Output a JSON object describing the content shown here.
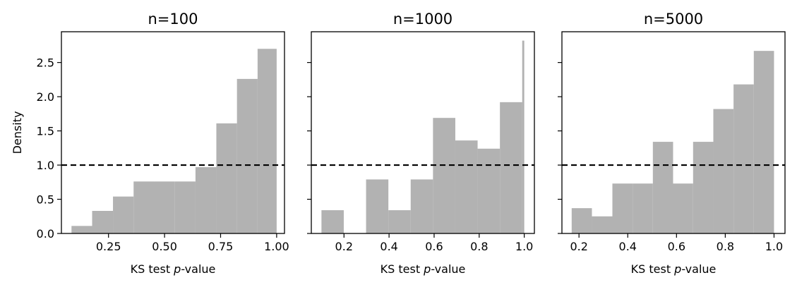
{
  "chart_data": [
    {
      "type": "histogram",
      "title": "n=100",
      "xlabel_prefix": "KS test ",
      "xlabel_var": "p",
      "xlabel_suffix": "-value",
      "ylabel": "Density",
      "xlim": [
        0.04,
        1.035
      ],
      "ylim": [
        0,
        2.95
      ],
      "xticks": [
        0.25,
        0.5,
        0.75,
        1.0
      ],
      "xtick_labels": [
        "0.25",
        "0.50",
        "0.75",
        "1.00"
      ],
      "yticks": [
        0.0,
        0.5,
        1.0,
        1.5,
        2.0,
        2.5
      ],
      "ytick_labels": [
        "0.0",
        "0.5",
        "1.0",
        "1.5",
        "2.0",
        "2.5"
      ],
      "bin_edges": [
        0.085,
        0.177,
        0.27,
        0.362,
        0.454,
        0.546,
        0.638,
        0.731,
        0.823,
        0.915,
        1.0
      ],
      "density": [
        0.11,
        0.33,
        0.54,
        0.76,
        0.76,
        0.76,
        0.97,
        1.61,
        2.26,
        2.7
      ],
      "reference_line": 1.0,
      "bar_color": "#b2b2b2"
    },
    {
      "type": "histogram",
      "title": "n=1000",
      "xlabel_prefix": "KS test ",
      "xlabel_var": "p",
      "xlabel_suffix": "-value",
      "xlim": [
        0.055,
        1.045
      ],
      "ylim": [
        0,
        2.95
      ],
      "xticks": [
        0.2,
        0.4,
        0.6,
        0.8,
        1.0
      ],
      "xtick_labels": [
        "0.2",
        "0.4",
        "0.6",
        "0.8",
        "1.0"
      ],
      "yticks": [
        0.0,
        0.5,
        1.0,
        1.5,
        2.0,
        2.5
      ],
      "ytick_labels": [],
      "bin_edges": [
        0.1,
        0.199,
        0.298,
        0.397,
        0.496,
        0.595,
        0.694,
        0.793,
        0.892,
        0.991,
        1.0
      ],
      "density": [
        0.34,
        0.0,
        0.79,
        0.34,
        0.79,
        1.69,
        1.36,
        1.24,
        1.92,
        2.82
      ],
      "reference_line": 1.0,
      "bar_color": "#b2b2b2"
    },
    {
      "type": "histogram",
      "title": "n=5000",
      "xlabel_prefix": "KS test ",
      "xlabel_var": "p",
      "xlabel_suffix": "-value",
      "xlim": [
        0.13,
        1.045
      ],
      "ylim": [
        0,
        2.95
      ],
      "xticks": [
        0.2,
        0.4,
        0.6,
        0.8,
        1.0
      ],
      "xtick_labels": [
        "0.2",
        "0.4",
        "0.6",
        "0.8",
        "1.0"
      ],
      "yticks": [
        0.0,
        0.5,
        1.0,
        1.5,
        2.0,
        2.5
      ],
      "ytick_labels": [],
      "bin_edges": [
        0.17,
        0.253,
        0.337,
        0.42,
        0.503,
        0.586,
        0.668,
        0.751,
        0.834,
        0.917,
        1.0
      ],
      "density": [
        0.37,
        0.25,
        0.73,
        0.73,
        1.34,
        0.73,
        1.34,
        1.82,
        2.18,
        2.67
      ],
      "reference_line": 1.0,
      "bar_color": "#b2b2b2"
    }
  ]
}
